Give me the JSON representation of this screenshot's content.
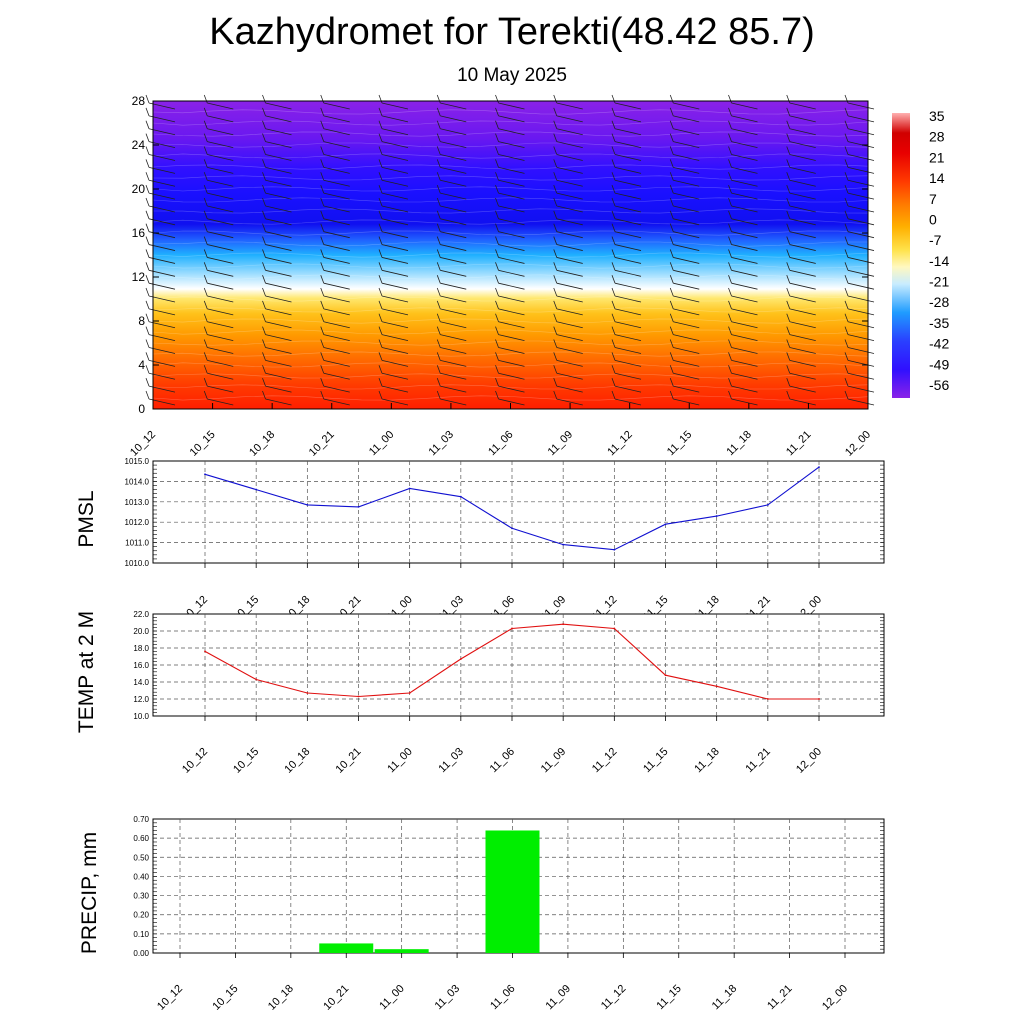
{
  "title": "Kazhydromet for Terekti(48.42 85.7)",
  "subtitle": "10 May 2025",
  "chart_data": [
    {
      "type": "heatmap",
      "name": "temperature-cross-section",
      "x_categories": [
        "10_12",
        "10_15",
        "10_18",
        "10_21",
        "11_00",
        "11_03",
        "11_06",
        "11_09",
        "11_12",
        "11_15",
        "11_18",
        "11_21",
        "12_00"
      ],
      "y_ticks": [
        "0",
        "4",
        "8",
        "12",
        "16",
        "20",
        "24",
        "28"
      ],
      "ylim": [
        0,
        28
      ],
      "colorbar_labels": [
        "35",
        "28",
        "21",
        "14",
        "7",
        "0",
        "-7",
        "-14",
        "-21",
        "-28",
        "-35",
        "-42",
        "-49",
        "-56"
      ],
      "colorbar_range": [
        -60,
        38
      ],
      "colors": [
        "#7f1fe0",
        "#3010ff",
        "#1a10f5",
        "#2060ff",
        "#1fb0ff",
        "#c8ecff",
        "#fff8c0",
        "#ffe24a",
        "#ffb000",
        "#ff8200",
        "#ff5a00",
        "#ff2a00",
        "#e80000",
        "#ff8080"
      ]
    },
    {
      "type": "line",
      "name": "pmsl",
      "ylabel": "PMSL",
      "categories": [
        "10_12",
        "10_15",
        "10_18",
        "10_21",
        "11_00",
        "11_03",
        "11_06",
        "11_09",
        "11_12",
        "11_15",
        "11_18",
        "11_21",
        "12_00"
      ],
      "y_ticks": [
        "1010.0",
        "1011.0",
        "1012.0",
        "1013.0",
        "1014.0",
        "1015.0"
      ],
      "ylim": [
        1010,
        1015
      ],
      "values": [
        1014.35,
        1013.6,
        1012.85,
        1012.75,
        1013.65,
        1013.25,
        1011.7,
        1010.9,
        1010.65,
        1011.9,
        1012.3,
        1012.85,
        1014.7
      ],
      "color": "#1010d0"
    },
    {
      "type": "line",
      "name": "temp-2m",
      "ylabel": "TEMP at 2 M",
      "categories": [
        "10_12",
        "10_15",
        "10_18",
        "10_21",
        "11_00",
        "11_03",
        "11_06",
        "11_09",
        "11_12",
        "11_15",
        "11_18",
        "11_21",
        "12_00"
      ],
      "y_ticks": [
        "10.0",
        "12.0",
        "14.0",
        "16.0",
        "18.0",
        "20.0",
        "22.0"
      ],
      "ylim": [
        10,
        22
      ],
      "values": [
        17.6,
        14.3,
        12.7,
        12.3,
        12.7,
        16.7,
        20.3,
        20.8,
        20.3,
        14.8,
        13.5,
        12.0,
        12.0
      ],
      "color": "#e01010"
    },
    {
      "type": "bar",
      "name": "precip",
      "ylabel": "PRECIP, mm",
      "categories": [
        "10_12",
        "10_15",
        "10_18",
        "10_21",
        "11_00",
        "11_03",
        "11_06",
        "11_09",
        "11_12",
        "11_15",
        "11_18",
        "11_21",
        "12_00"
      ],
      "y_ticks": [
        "0.00",
        "0.10",
        "0.20",
        "0.30",
        "0.40",
        "0.50",
        "0.60",
        "0.70"
      ],
      "ylim": [
        0,
        0.7
      ],
      "values": [
        0,
        0,
        0,
        0.05,
        0.02,
        0,
        0.64,
        0,
        0,
        0,
        0,
        0,
        0
      ],
      "color": "#00ee00"
    }
  ]
}
